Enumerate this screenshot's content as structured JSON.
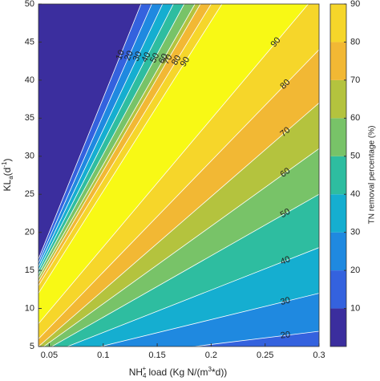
{
  "chart_data": {
    "type": "contour",
    "xlabel": [
      "NH",
      "4",
      "+",
      " load (Kg N/(m",
      "3",
      "*d))"
    ],
    "ylabel": [
      "KL",
      "a",
      "(d",
      "-1",
      ")"
    ],
    "colorbar_label": "TN removal percentage (%)",
    "xlim": [
      0.04,
      0.3
    ],
    "xticks": [
      0.05,
      0.1,
      0.15,
      0.2,
      0.25,
      0.3
    ],
    "ylim": [
      5,
      50
    ],
    "yticks": [
      5,
      10,
      15,
      20,
      25,
      30,
      35,
      40,
      45,
      50
    ],
    "clim": [
      0,
      90
    ],
    "cticks": [
      10,
      20,
      30,
      40,
      50,
      60,
      70,
      80,
      90
    ],
    "base_color": "#3b2e9e",
    "contours": [
      {
        "level": 10,
        "color": "#3462de",
        "low": {
          "x": [
            0.04,
            0.3
          ],
          "y": [
            2,
            4
          ]
        },
        "high": {
          "x": [
            0.04,
            0.135
          ],
          "y": [
            16.5,
            50
          ]
        }
      },
      {
        "level": 20,
        "color": "#1f89e0",
        "low": {
          "x": [
            0.04,
            0.3
          ],
          "y": [
            2.5,
            7
          ]
        },
        "high": {
          "x": [
            0.04,
            0.145
          ],
          "y": [
            16,
            50
          ]
        }
      },
      {
        "level": 30,
        "color": "#15aed0",
        "low": {
          "x": [
            0.04,
            0.3
          ],
          "y": [
            3,
            12
          ]
        },
        "high": {
          "x": [
            0.04,
            0.155
          ],
          "y": [
            15.5,
            50
          ]
        }
      },
      {
        "level": 40,
        "color": "#2ebda0",
        "low": {
          "x": [
            0.04,
            0.3
          ],
          "y": [
            3.5,
            18
          ]
        },
        "high": {
          "x": [
            0.04,
            0.165
          ],
          "y": [
            15,
            50
          ]
        }
      },
      {
        "level": 50,
        "color": "#78c368",
        "low": {
          "x": [
            0.04,
            0.3
          ],
          "y": [
            4,
            25
          ]
        },
        "high": {
          "x": [
            0.04,
            0.175
          ],
          "y": [
            14.5,
            50
          ]
        }
      },
      {
        "level": 60,
        "color": "#b4c33e",
        "low": {
          "x": [
            0.04,
            0.3
          ],
          "y": [
            4.5,
            31
          ]
        },
        "high": {
          "x": [
            0.04,
            0.185
          ],
          "y": [
            14,
            50
          ]
        }
      },
      {
        "level": 70,
        "color": "#f2b834",
        "low": {
          "x": [
            0.04,
            0.3
          ],
          "y": [
            5,
            37
          ]
        },
        "high": {
          "x": [
            0.04,
            0.19
          ],
          "y": [
            13.5,
            50
          ]
        }
      },
      {
        "level": 80,
        "color": "#f6d62a",
        "low": {
          "x": [
            0.04,
            0.3
          ],
          "y": [
            6,
            44
          ]
        },
        "high": {
          "x": [
            0.04,
            0.2
          ],
          "y": [
            13,
            50
          ]
        }
      },
      {
        "level": 90,
        "color": "#f8f915",
        "low": {
          "x": [
            0.04,
            0.29
          ],
          "y": [
            8,
            50
          ]
        },
        "high": {
          "x": [
            0.04,
            0.21
          ],
          "y": [
            12,
            50
          ]
        }
      }
    ]
  }
}
